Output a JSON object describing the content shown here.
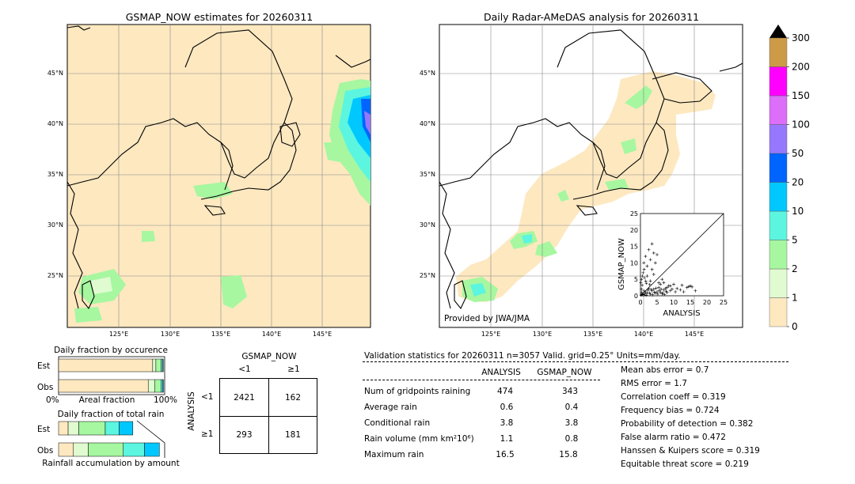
{
  "left_map": {
    "title": "GSMAP_NOW estimates for 20260311",
    "lat_labels": [
      "45°N",
      "40°N",
      "35°N",
      "30°N",
      "25°N"
    ],
    "lon_labels": [
      "125°E",
      "130°E",
      "135°E",
      "140°E",
      "145°E"
    ]
  },
  "right_map": {
    "title": "Daily Radar-AMeDAS analysis for 20260311",
    "lat_labels": [
      "45°N",
      "40°N",
      "35°N",
      "30°N",
      "25°N"
    ],
    "lon_labels": [
      "125°E",
      "130°E",
      "135°E",
      "140°E",
      "145°E"
    ],
    "credit": "Provided by JWA/JMA"
  },
  "colorbar": {
    "levels": [
      "0",
      "1",
      "2",
      "5",
      "10",
      "20",
      "50",
      "100",
      "150",
      "200",
      "300"
    ],
    "colors": [
      "#fde8c0",
      "#e0fbd0",
      "#a6f7a0",
      "#5cf5e0",
      "#00c8ff",
      "#0064ff",
      "#9678ff",
      "#dc6efa",
      "#ff00ff",
      "#cd9a48",
      "#000000"
    ]
  },
  "chart_data": [
    {
      "type": "scatter",
      "title": "",
      "xlabel": "ANALYSIS",
      "ylabel": "GSMAP_NOW",
      "xlim": [
        0,
        25
      ],
      "ylim": [
        0,
        25
      ],
      "xticks": [
        "0",
        "5",
        "10",
        "15",
        "20",
        "25"
      ],
      "yticks": [
        "0",
        "5",
        "10",
        "15",
        "20",
        "25"
      ],
      "points": [
        [
          0.5,
          0.5
        ],
        [
          1,
          0.3
        ],
        [
          1.5,
          1.2
        ],
        [
          2,
          0.8
        ],
        [
          0.3,
          2
        ],
        [
          1,
          1.5
        ],
        [
          2.5,
          2.2
        ],
        [
          3,
          0.5
        ],
        [
          3.5,
          1.5
        ],
        [
          4,
          2
        ],
        [
          4.5,
          0.8
        ],
        [
          5,
          1.2
        ],
        [
          5.5,
          2.5
        ],
        [
          6,
          1
        ],
        [
          6.5,
          0.6
        ],
        [
          7,
          1.8
        ],
        [
          7.5,
          2.2
        ],
        [
          8,
          1
        ],
        [
          8.5,
          3
        ],
        [
          9,
          1.5
        ],
        [
          9.5,
          2
        ],
        [
          10,
          3.5
        ],
        [
          10.5,
          1.2
        ],
        [
          11,
          2.2
        ],
        [
          12,
          1.8
        ],
        [
          12.5,
          3.2
        ],
        [
          13,
          1.2
        ],
        [
          14,
          2.5
        ],
        [
          14.5,
          2.8
        ],
        [
          15,
          3
        ],
        [
          15.5,
          2.7
        ],
        [
          16.5,
          1.5
        ],
        [
          1,
          10
        ],
        [
          1.5,
          12
        ],
        [
          2,
          9
        ],
        [
          2.5,
          14
        ],
        [
          3,
          11
        ],
        [
          3.5,
          15.8
        ],
        [
          4,
          13
        ],
        [
          4.5,
          10
        ],
        [
          5,
          12.5
        ],
        [
          0.8,
          7
        ],
        [
          1.2,
          5.5
        ],
        [
          2,
          6
        ],
        [
          3,
          4.5
        ],
        [
          3.5,
          8
        ],
        [
          4,
          6.5
        ],
        [
          5.5,
          4
        ],
        [
          6,
          3.5
        ],
        [
          6.5,
          5
        ],
        [
          7,
          4
        ],
        [
          8,
          2.5
        ],
        [
          9,
          3
        ],
        [
          0.5,
          3.2
        ],
        [
          1.8,
          3.8
        ],
        [
          2.8,
          3.4
        ],
        [
          0.2,
          0.2
        ],
        [
          0.4,
          1
        ],
        [
          0.7,
          0.4
        ],
        [
          1.3,
          0.6
        ],
        [
          1.7,
          0.2
        ],
        [
          2.2,
          1.7
        ],
        [
          2.7,
          0.9
        ],
        [
          3.2,
          1.9
        ],
        [
          3.7,
          0.3
        ],
        [
          4.2,
          1.1
        ],
        [
          4.7,
          2.3
        ],
        [
          5.2,
          0.5
        ],
        [
          5.7,
          1.6
        ],
        [
          6.2,
          2
        ],
        [
          6.7,
          0.9
        ],
        [
          7.2,
          0.4
        ],
        [
          7.7,
          1.4
        ],
        [
          0.1,
          4
        ],
        [
          0.3,
          5
        ],
        [
          0.6,
          6
        ],
        [
          1.1,
          8
        ],
        [
          1.6,
          4.5
        ]
      ]
    },
    {
      "type": "bar",
      "title": "Daily fraction by occurence",
      "orientation": "horizontal stacked",
      "categories": [
        "Est",
        "Obs"
      ],
      "xlabel": "Areal fraction",
      "xlim_labels": [
        "0%",
        "100%"
      ],
      "series": [
        {
          "name": "0",
          "color": "#fde8c0",
          "values": [
            0.887,
            0.845
          ]
        },
        {
          "name": "1",
          "color": "#e0fbd0",
          "values": [
            0.03,
            0.06
          ]
        },
        {
          "name": "2",
          "color": "#a6f7a0",
          "values": [
            0.05,
            0.06
          ]
        },
        {
          "name": "5",
          "color": "#5cf5e0",
          "values": [
            0.015,
            0.015
          ]
        },
        {
          "name": "10",
          "color": "#00c8ff",
          "values": [
            0.005,
            0.008
          ]
        }
      ]
    },
    {
      "type": "bar",
      "title": "Daily fraction of total rain",
      "orientation": "horizontal stacked",
      "categories": [
        "Est",
        "Obs"
      ],
      "xlabel": "Rainfall accumulation by amount",
      "series": [
        {
          "name": "0",
          "color": "#fde8c0",
          "values": [
            0.09,
            0.14
          ]
        },
        {
          "name": "1",
          "color": "#e0fbd0",
          "values": [
            0.1,
            0.14
          ]
        },
        {
          "name": "2",
          "color": "#a6f7a0",
          "values": [
            0.25,
            0.33
          ]
        },
        {
          "name": "5",
          "color": "#5cf5e0",
          "values": [
            0.13,
            0.2
          ]
        },
        {
          "name": "10",
          "color": "#00c8ff",
          "values": [
            0.13,
            0.14
          ]
        }
      ]
    },
    {
      "type": "table",
      "title": "GSMAP_NOW vs ANALYSIS contingency",
      "col_header": "GSMAP_NOW",
      "row_header": "ANALYSIS",
      "cols": [
        "<1",
        "≥1"
      ],
      "rows": [
        "<1",
        "≥1"
      ],
      "cells": [
        [
          "2421",
          "162"
        ],
        [
          "293",
          "181"
        ]
      ]
    }
  ],
  "validation": {
    "header": "Validation statistics for 20260311  n=3057 Valid. grid=0.25° Units=mm/day.",
    "col_analysis": "ANALYSIS",
    "col_gsmap": "GSMAP_NOW",
    "rows": [
      {
        "label": "Num of gridpoints raining",
        "analysis": "474",
        "gsmap": "343"
      },
      {
        "label": "Average rain",
        "analysis": "0.6",
        "gsmap": "0.4"
      },
      {
        "label": "Conditional rain",
        "analysis": "3.8",
        "gsmap": "3.8"
      },
      {
        "label": "Rain volume (mm km²10⁶)",
        "analysis": "1.1",
        "gsmap": "0.8"
      },
      {
        "label": "Maximum rain",
        "analysis": "16.5",
        "gsmap": "15.8"
      }
    ],
    "scores": [
      "Mean abs error =    0.7",
      "RMS error =    1.7",
      "Correlation coeff =  0.319",
      "Frequency bias =  0.724",
      "Probability of detection =  0.382",
      "False alarm ratio =  0.472",
      "Hanssen & Kuipers score =  0.319",
      "Equitable threat score =  0.219"
    ]
  }
}
